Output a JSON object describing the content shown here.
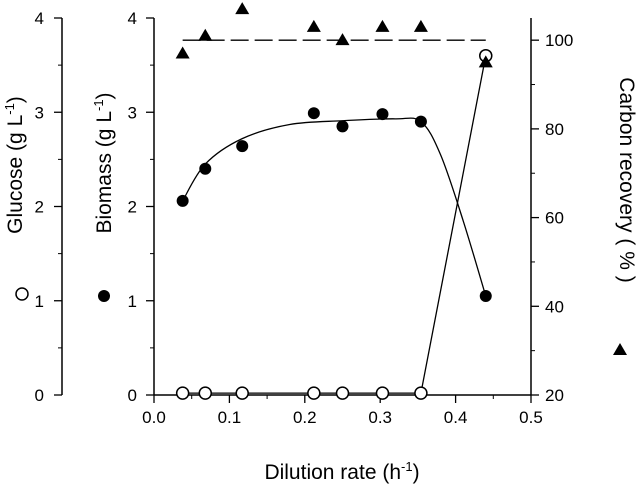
{
  "chart_data": {
    "type": "scatter",
    "xlabel_main": "Dilution rate (h",
    "xlabel_sup": "-1",
    "xlabel_end": ")",
    "glucose_label": "Glucose (g L",
    "biomass_label": "Biomass (g L",
    "label_sup": "-1",
    "label_end": ")",
    "carbon_label": "Carbon recovery ( % )",
    "xlim": [
      0.0,
      0.5
    ],
    "xticks": [
      "0.0",
      "0.1",
      "0.2",
      "0.3",
      "0.4",
      "0.5"
    ],
    "ylim_left": [
      0,
      4
    ],
    "yticks_left": [
      "0",
      "1",
      "2",
      "3",
      "4"
    ],
    "ylim_right": [
      20,
      105
    ],
    "yticks_right": [
      "20",
      "40",
      "60",
      "80",
      "100"
    ],
    "reference_line": {
      "y": 100,
      "x_range": [
        0.038,
        0.44
      ],
      "style": "dashed"
    },
    "series": [
      {
        "marker": "open-circle",
        "axis": "left",
        "x": [
          0.038,
          0.068,
          0.117,
          0.212,
          0.25,
          0.303,
          0.354,
          0.44
        ],
        "y": [
          0.02,
          0.02,
          0.02,
          0.02,
          0.02,
          0.02,
          0.02,
          3.6
        ]
      },
      {
        "marker": "filled-circle",
        "axis": "left",
        "x": [
          0.038,
          0.068,
          0.117,
          0.212,
          0.25,
          0.303,
          0.354,
          0.44
        ],
        "y": [
          2.06,
          2.4,
          2.64,
          2.99,
          2.85,
          2.98,
          2.9,
          1.05
        ]
      },
      {
        "marker": "filled-triangle",
        "axis": "right",
        "x": [
          0.038,
          0.068,
          0.117,
          0.212,
          0.25,
          0.303,
          0.354,
          0.44
        ],
        "y": [
          97,
          101,
          107,
          103,
          100,
          103,
          103,
          95
        ]
      }
    ]
  }
}
